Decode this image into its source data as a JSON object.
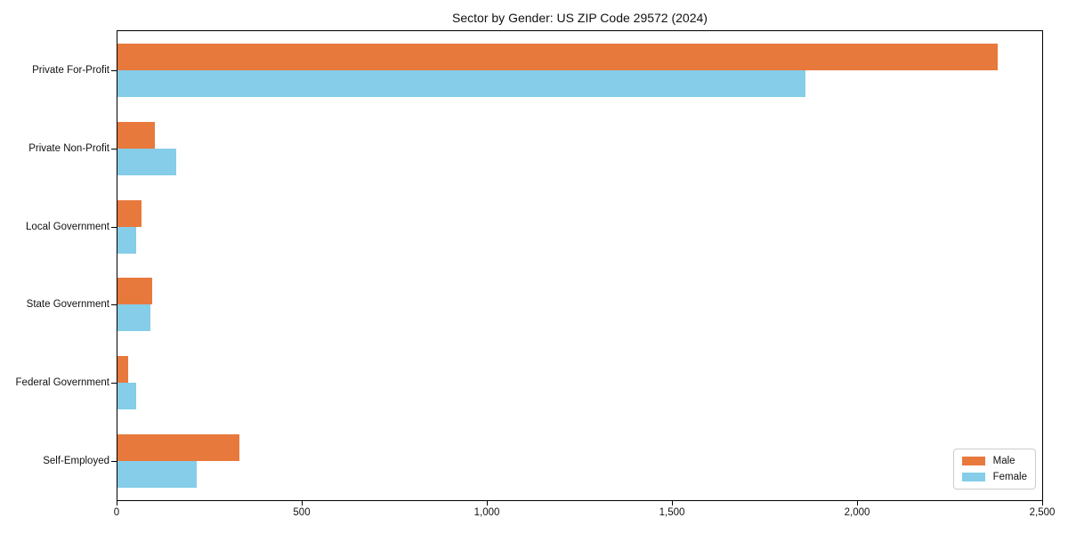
{
  "title": "Sector by Gender: US ZIP Code 29572 (2024)",
  "colors": {
    "male": "#e8793d",
    "female": "#85cde8",
    "axis": "#000000",
    "legend_border": "#cccccc",
    "background": "#ffffff"
  },
  "chart_data": {
    "type": "bar",
    "orientation": "horizontal",
    "title": "Sector by Gender: US ZIP Code 29572 (2024)",
    "xlabel": "",
    "ylabel": "",
    "categories": [
      "Private For-Profit",
      "Private Non-Profit",
      "Local Government",
      "State Government",
      "Federal Government",
      "Self-Employed"
    ],
    "series": [
      {
        "name": "Male",
        "color": "#e8793d",
        "values": [
          2380,
          100,
          65,
          94,
          28,
          330
        ]
      },
      {
        "name": "Female",
        "color": "#85cde8",
        "values": [
          1860,
          158,
          50,
          88,
          51,
          215
        ]
      }
    ],
    "xlim": [
      0,
      2500
    ],
    "x_ticks": [
      0,
      500,
      1000,
      1500,
      2000,
      2500
    ],
    "x_tick_labels": [
      "0",
      "500",
      "1,000",
      "1,500",
      "2,000",
      "2,500"
    ],
    "grid": false,
    "legend_position": "lower right"
  },
  "legend": {
    "items": [
      {
        "label": "Male"
      },
      {
        "label": "Female"
      }
    ]
  }
}
